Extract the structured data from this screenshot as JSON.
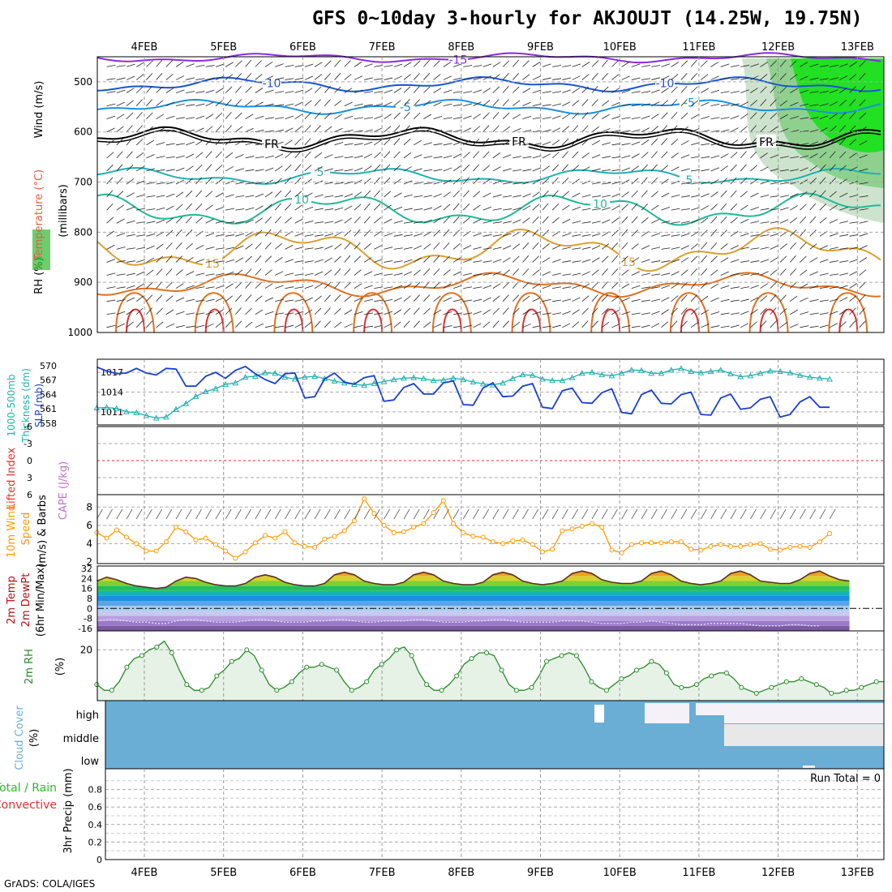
{
  "title": "GFS 0~10day 3-hourly for AKJOUJT (14.25W, 19.75N)",
  "credit": "GrADS: COLA/IGES",
  "colors": {
    "wind_label": "#000000",
    "temperature_label": "#e06040",
    "rh_label": "#2fb82f",
    "slp": "#1a3fcf",
    "thickness": "#20b0b0",
    "lifted_index": "#e03030",
    "cape": "#c070d0",
    "wind10m": "#ff9a00",
    "temp2m": "#b01010",
    "dewpt2m": "#8a2be2",
    "rh2m": "#2a8a2a",
    "cloud": "#6aaed6",
    "precip_total": "#2fb82f",
    "precip_conv": "#e03030"
  },
  "chart_data": [
    {
      "panel": "upper_air",
      "type": "heatmap",
      "x_dates": [
        "4FEB",
        "5FEB",
        "6FEB",
        "7FEB",
        "8FEB",
        "9FEB",
        "10FEB",
        "11FEB",
        "12FEB",
        "13FEB"
      ],
      "ylabel": "(millibars)",
      "ylabel_parts": [
        "RH (%)",
        "Temperature (°C)",
        "Wind (m/s)"
      ],
      "y_ticks": [
        500,
        600,
        700,
        800,
        900,
        1000
      ],
      "ylim": [
        1000,
        450
      ],
      "isotherm_labels": [
        "-15",
        "-10",
        "-10",
        "-5",
        "-5",
        "FR",
        "FR",
        "FR",
        "5",
        "5",
        "10",
        "10",
        "15",
        "15",
        "10",
        "10",
        "10",
        "1"
      ]
    },
    {
      "panel": "slp_thickness",
      "type": "line",
      "ylabel_left": "1000-500mb Thickness (dm)",
      "ylabel_right": "SLP (mb)",
      "thickness_ticks": [
        "570",
        "567",
        "564",
        "561",
        "558"
      ],
      "slp_ticks": [
        "1017",
        "1014",
        "1011"
      ],
      "series": [
        {
          "name": "SLP (mb)",
          "values": [
            1017.8,
            1017.2,
            1016.8,
            1016.9,
            1017.6,
            1016.9,
            1016.6,
            1017.6,
            1017.5,
            1014.9,
            1014.9,
            1016.4,
            1017.0,
            1016.1,
            1017.3,
            1017.9,
            1016.8,
            1015.9,
            1015.3,
            1016.8,
            1016.9,
            1013.1,
            1013.3,
            1016.0,
            1016.9,
            1015.5,
            1015.2,
            1016.2,
            1016.5,
            1012.6,
            1012.8,
            1014.7,
            1015.3,
            1013.7,
            1013.7,
            1015.4,
            1015.7,
            1012.1,
            1012.0,
            1014.6,
            1015.4,
            1013.3,
            1013.4,
            1014.9,
            1015.3,
            1011.7,
            1011.5,
            1014.2,
            1014.6,
            1012.4,
            1012.3,
            1013.9,
            1014.5,
            1010.9,
            1010.7,
            1013.6,
            1014.3,
            1012.3,
            1012.2,
            1013.6,
            1014.0,
            1010.6,
            1010.5,
            1013.1,
            1013.7,
            1011.4,
            1011.6,
            1012.9,
            1013.3,
            1010.2,
            1010.6,
            1012.5,
            1013.3,
            1011.7,
            1011.7
          ]
        },
        {
          "name": "Thickness (dm)",
          "values": [
            561.2,
            561.3,
            561.1,
            560.4,
            560.2,
            559.6,
            559.1,
            559.3,
            560.9,
            562.1,
            563.6,
            564.6,
            565.2,
            566.1,
            566.4,
            567.6,
            567.8,
            568.5,
            568.4,
            567.6,
            567.2,
            567.6,
            567.8,
            567.3,
            566.8,
            566.4,
            566.1,
            565.9,
            566.3,
            566.7,
            567.1,
            567.4,
            567.5,
            567.3,
            566.9,
            567.0,
            567.4,
            567.1,
            566.6,
            566.2,
            566.0,
            566.4,
            567.3,
            568.1,
            568.0,
            567.2,
            566.9,
            566.9,
            567.5,
            568.4,
            568.6,
            568.1,
            567.9,
            568.4,
            569.1,
            569.0,
            568.4,
            568.4,
            569.1,
            569.4,
            568.8,
            568.5,
            568.8,
            569.1,
            568.3,
            567.7,
            567.9,
            568.4,
            568.9,
            568.8,
            568.5,
            568.0,
            567.6,
            567.4,
            567.2
          ]
        }
      ]
    },
    {
      "panel": "lifted_cape",
      "type": "line",
      "ylabel_left": "Lifted Index",
      "ylabel_right": "CAPE (J/kg)",
      "y_ticks": [
        "-6",
        "-3",
        "0",
        "3",
        "6"
      ],
      "ylim": [
        -6,
        6
      ],
      "series": [
        {
          "name": "Lifted Index",
          "values": [
            0
          ]
        }
      ]
    },
    {
      "panel": "wind10m",
      "type": "line",
      "ylabel": [
        "10m Wind",
        "Speed",
        "(m/s) & Barbs"
      ],
      "y_ticks": [
        "8",
        "6",
        "4",
        "2"
      ],
      "ylim": [
        2,
        9
      ],
      "series": [
        {
          "name": "10m Wind Speed (m/s)",
          "values": [
            5.2,
            4.6,
            5.5,
            4.7,
            4.0,
            3.2,
            3.2,
            4.2,
            5.8,
            5.3,
            4.4,
            4.6,
            3.9,
            3.2,
            2.4,
            3.1,
            4.1,
            4.9,
            4.6,
            5.3,
            4.1,
            3.7,
            3.6,
            4.5,
            4.8,
            5.4,
            6.5,
            8.9,
            7.3,
            6.0,
            5.2,
            5.3,
            5.8,
            6.2,
            7.4,
            8.7,
            6.2,
            5.2,
            4.8,
            4.7,
            4.2,
            4.0,
            4.3,
            4.4,
            3.9,
            3.1,
            3.4,
            5.4,
            5.6,
            5.9,
            6.2,
            5.8,
            3.3,
            3.0,
            3.9,
            4.1,
            4.1,
            4.1,
            4.2,
            4.2,
            3.4,
            3.3,
            3.7,
            3.9,
            3.7,
            3.7,
            3.9,
            4.0,
            3.4,
            3.3,
            3.6,
            3.7,
            3.6,
            4.2,
            5.1
          ]
        }
      ]
    },
    {
      "panel": "temp_dewpt",
      "type": "area",
      "ylabel": [
        "2m Temp",
        "2m DewPt",
        "(6hr Min/Max)"
      ],
      "y_ticks": [
        "32",
        "24",
        "16",
        "8",
        "0",
        "-8",
        "-16"
      ],
      "ylim": [
        -18,
        34
      ],
      "series": [
        {
          "name": "2m Temp",
          "values": [
            22,
            25,
            23,
            20,
            18,
            17,
            16,
            17,
            22,
            25,
            24,
            21,
            19,
            18,
            18,
            20,
            25,
            27,
            25,
            21,
            19,
            18,
            18,
            20,
            27,
            29,
            27,
            22,
            20,
            19,
            19,
            21,
            27,
            29,
            27,
            22,
            20,
            19,
            19,
            21,
            27,
            29,
            27,
            22,
            20,
            19,
            20,
            22,
            28,
            30,
            28,
            23,
            21,
            20,
            20,
            22,
            28,
            30,
            27,
            22,
            20,
            19,
            20,
            22,
            28,
            30,
            27,
            22,
            21,
            20,
            20,
            23,
            28,
            30,
            26,
            23,
            22
          ]
        },
        {
          "name": "2m DewPt",
          "values": [
            -10,
            -9,
            -9,
            -10,
            -11,
            -11,
            -12,
            -12,
            -10,
            -9,
            -9,
            -10,
            -11,
            -11,
            -11,
            -10,
            -9,
            -9,
            -10,
            -11,
            -11,
            -11,
            -10,
            -10,
            -9,
            -9,
            -10,
            -11,
            -11,
            -10,
            -10,
            -10,
            -9,
            -9,
            -10,
            -11,
            -11,
            -11,
            -10,
            -10,
            -9,
            -9,
            -10,
            -11,
            -11,
            -11,
            -11,
            -10,
            -10,
            -10,
            -11,
            -12,
            -12,
            -12,
            -11,
            -11,
            -10,
            -11,
            -12,
            -13,
            -13,
            -13,
            -12,
            -12,
            -12,
            -12,
            -13,
            -14,
            -14,
            -14,
            -13,
            -13,
            -14,
            -14
          ]
        }
      ]
    },
    {
      "panel": "rh2m",
      "type": "area",
      "ylabel": [
        "2m RH",
        "(%)"
      ],
      "y_ticks": [
        "20"
      ],
      "ylim": [
        3,
        26
      ],
      "series": [
        {
          "name": "2m RH (%)",
          "values": [
            8,
            6,
            6,
            9,
            14,
            17,
            18,
            20,
            21,
            23,
            19,
            13,
            8,
            6,
            6,
            7,
            11,
            13,
            16,
            17,
            20,
            18,
            13,
            8,
            6,
            7,
            9,
            12,
            14,
            14,
            15,
            14,
            13,
            9,
            6,
            7,
            9,
            13,
            15,
            17,
            20,
            21,
            18,
            12,
            8,
            6,
            6,
            8,
            11,
            15,
            17,
            19,
            19,
            18,
            13,
            8,
            6,
            6,
            7,
            11,
            16,
            17,
            18,
            19,
            18,
            14,
            9,
            7,
            6,
            8,
            10,
            11,
            13,
            14,
            16,
            15,
            12,
            8,
            7,
            7,
            8,
            10,
            11,
            12,
            12,
            10,
            7,
            6,
            5,
            6,
            7,
            8,
            9,
            9,
            10,
            9,
            8,
            7,
            5,
            5,
            6,
            6,
            7,
            8,
            9,
            9
          ]
        }
      ]
    },
    {
      "panel": "cloud_cover",
      "type": "heatmap",
      "ylabel": [
        "Cloud Cover",
        "(%)"
      ],
      "levels": [
        "high",
        "middle",
        "low"
      ]
    },
    {
      "panel": "precip",
      "type": "bar",
      "ylabel": [
        "Total / Rain",
        "Convective",
        "3hr Precip (mm)"
      ],
      "y_ticks": [
        "0.8",
        "0.6",
        "0.4",
        "0.2",
        "0"
      ],
      "ylim": [
        0,
        1
      ],
      "run_total": "Run Total = 0",
      "series": [
        {
          "name": "3hr Precip (mm)",
          "values": [
            0
          ]
        }
      ]
    }
  ]
}
